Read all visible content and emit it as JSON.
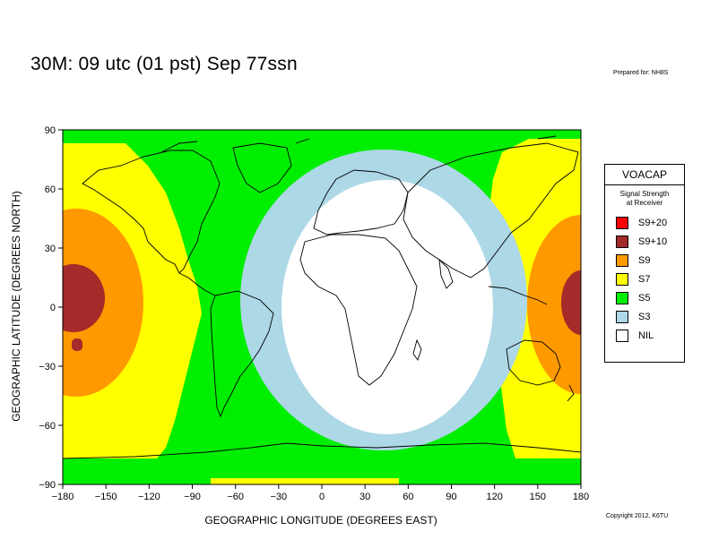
{
  "title": "30M:  09 utc (01 pst) Sep 77ssn",
  "prepared_by": "Prepared for: NH8S",
  "copyright": "Copyright 2012, K6TU",
  "xlabel": "GEOGRAPHIC LONGITUDE (DEGREES EAST)",
  "ylabel": "GEOGRAPHIC LATITUDE (DEGREES NORTH)",
  "x_ticks": [
    "−180",
    "−150",
    "−120",
    "−90",
    "−60",
    "−30",
    "0",
    "30",
    "60",
    "90",
    "120",
    "150",
    "180"
  ],
  "y_ticks": [
    "90",
    "60",
    "30",
    "0",
    "−30",
    "−60",
    "−90"
  ],
  "legend": {
    "title": "VOACAP",
    "subtitle_line1": "Signal Strength",
    "subtitle_line2": "at Receiver",
    "items": [
      {
        "label": "S9+20",
        "color": "#ff0000"
      },
      {
        "label": "S9+10",
        "color": "#a52a2a"
      },
      {
        "label": "S9",
        "color": "#ff9900"
      },
      {
        "label": "S7",
        "color": "#ffff00"
      },
      {
        "label": "S5",
        "color": "#00ee00"
      },
      {
        "label": "S3",
        "color": "#add8e6"
      },
      {
        "label": "NIL",
        "color": "#ffffff"
      }
    ]
  },
  "colors": {
    "s9_10": "#a52a2a",
    "s9": "#ff9900",
    "s7": "#ffff00",
    "s5": "#00ee00",
    "s3": "#add8e6",
    "nil": "#ffffff",
    "coast": "#000000"
  }
}
